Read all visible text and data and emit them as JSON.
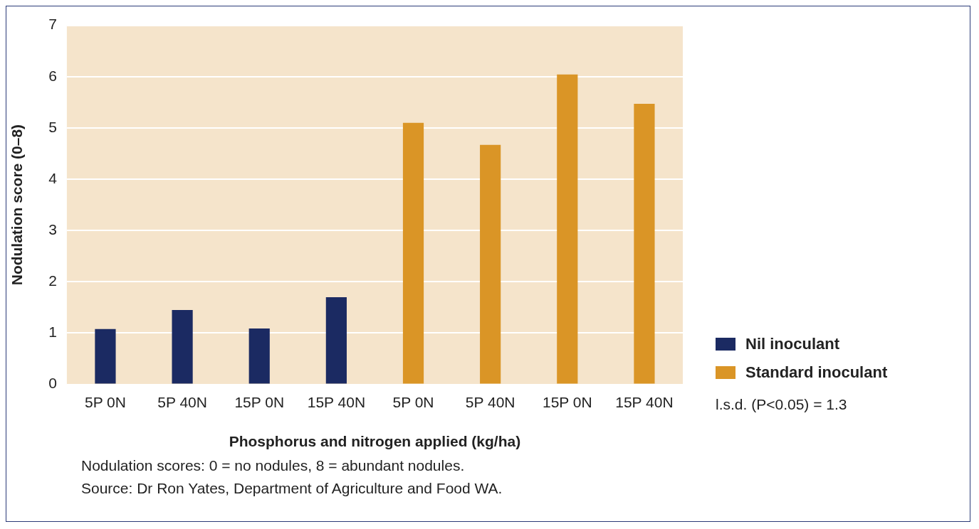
{
  "chart_data": {
    "type": "bar",
    "xlabel": "Phosphorus and nitrogen applied (kg/ha)",
    "ylabel": "Nodulation score (0–8)",
    "categories": [
      "5P 0N",
      "5P 40N",
      "15P 0N",
      "15P 40N",
      "5P 0N",
      "5P 40N",
      "15P 0N",
      "15P 40N"
    ],
    "series": [
      {
        "name": "Nil inoculant",
        "color": "#1b2a62",
        "values": [
          1.08,
          1.45,
          1.09,
          1.7,
          null,
          null,
          null,
          null
        ]
      },
      {
        "name": "Standard inoculant",
        "color": "#da9526",
        "values": [
          null,
          null,
          null,
          null,
          5.1,
          4.67,
          6.04,
          5.47
        ]
      }
    ],
    "ylim": [
      0,
      7
    ],
    "yticks": [
      0,
      1,
      2,
      3,
      4,
      5,
      6,
      7
    ],
    "grid": "y",
    "legend": "right",
    "annotations": [
      "l.s.d. (P<0.05) = 1.3",
      "Nodulation scores: 0 = no nodules, 8 = abundant nodules.",
      "Source: Dr Ron Yates, Department of Agriculture and Food WA."
    ]
  }
}
